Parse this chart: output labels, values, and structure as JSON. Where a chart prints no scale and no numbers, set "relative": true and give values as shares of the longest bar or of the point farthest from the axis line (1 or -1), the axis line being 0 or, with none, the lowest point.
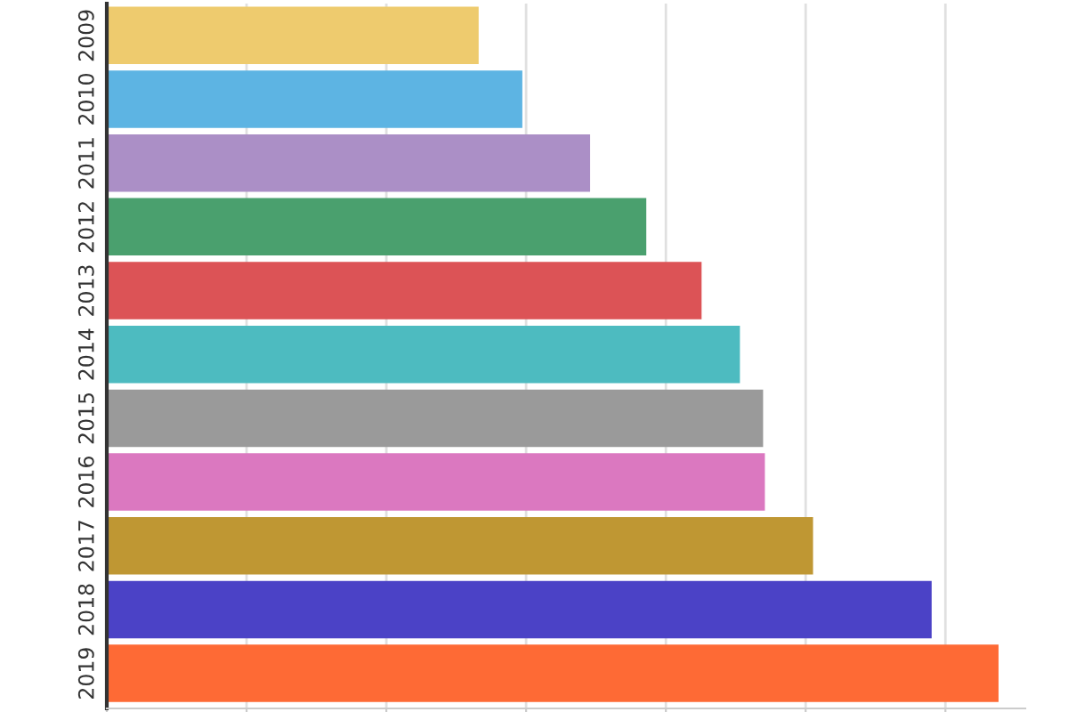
{
  "chart_data": {
    "type": "bar",
    "orientation": "horizontal",
    "relative": true,
    "grid": "x",
    "categories": [
      "2009",
      "2010",
      "2011",
      "2012",
      "2013",
      "2014",
      "2015",
      "2016",
      "2017",
      "2018",
      "2019"
    ],
    "values": [
      0.417,
      0.466,
      0.542,
      0.605,
      0.667,
      0.71,
      0.736,
      0.738,
      0.792,
      0.925,
      1
    ],
    "colors": [
      "#eecb6e",
      "#5db4e3",
      "#ab8fc6",
      "#4aa06e",
      "#dc5356",
      "#4dbbc0",
      "#9a9a9a",
      "#db78c0",
      "#bf9733",
      "#4b42c6",
      "#fe6a35"
    ]
  }
}
